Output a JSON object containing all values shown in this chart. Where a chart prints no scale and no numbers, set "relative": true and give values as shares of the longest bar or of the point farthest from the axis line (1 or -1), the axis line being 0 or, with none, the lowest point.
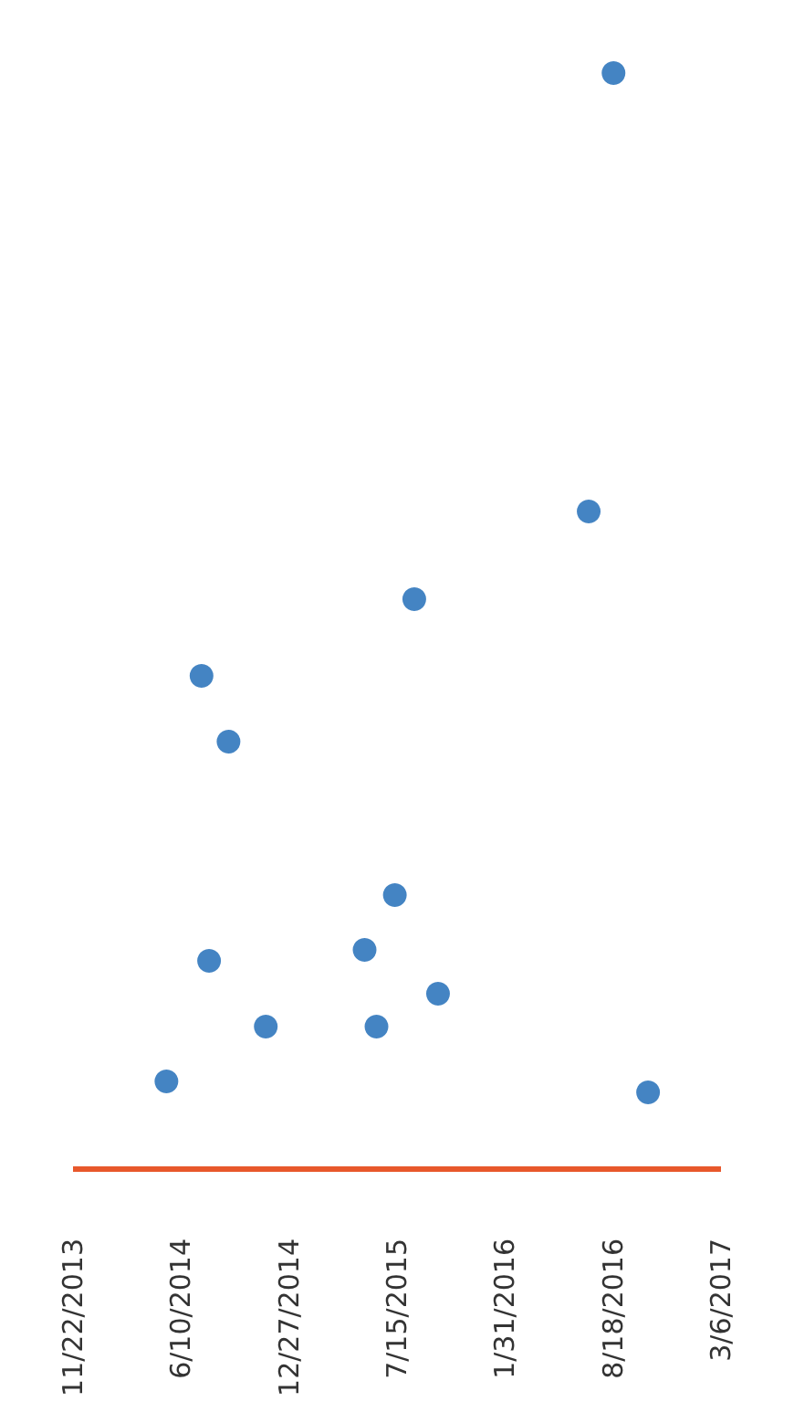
{
  "chart_data": {
    "type": "scatter",
    "relative": true,
    "marker": "circle",
    "x": [
      "2014-05-14",
      "2014-07-18",
      "2014-08-01",
      "2014-09-06",
      "2014-11-14",
      "2015-05-16",
      "2015-06-07",
      "2015-07-11",
      "2015-08-16",
      "2015-09-29",
      "2016-07-04",
      "2016-08-19",
      "2016-10-22"
    ],
    "series": [
      {
        "color": "#1565b4",
        "values": [
          0.08,
          0.45,
          0.19,
          0.39,
          0.13,
          0.2,
          0.13,
          0.25,
          0.52,
          0.16,
          0.6,
          1,
          0.07
        ]
      },
      {
        "type": "line",
        "marker": "none",
        "color": "#e8582c",
        "x": [
          "2013-11-22",
          "2017-03-06"
        ],
        "values": [
          0,
          0
        ]
      }
    ],
    "xlim": [
      "2013-11-22",
      "2017-03-06"
    ],
    "xticks": [
      {
        "value": "2013-11-22",
        "label": "11/22/2013"
      },
      {
        "value": "2014-06-10",
        "label": "6/10/2014"
      },
      {
        "value": "2014-12-27",
        "label": "12/27/2014"
      },
      {
        "value": "2015-07-15",
        "label": "7/15/2015"
      },
      {
        "value": "2016-01-31",
        "label": "1/31/2016"
      },
      {
        "value": "2016-08-18",
        "label": "8/18/2016"
      },
      {
        "value": "2017-03-06",
        "label": "3/6/2017"
      }
    ],
    "grid": false
  }
}
